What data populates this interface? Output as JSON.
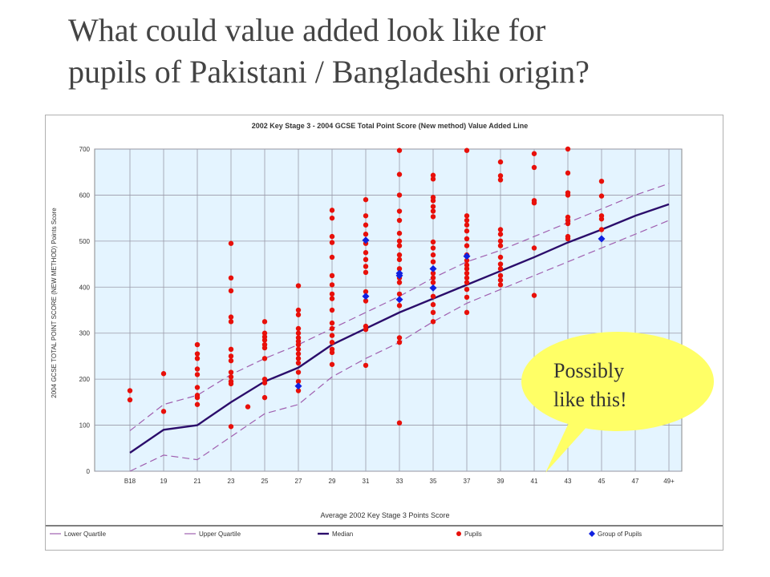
{
  "slide": {
    "title_line1": "What could value added look like for",
    "title_line2": "pupils of Pakistani / Bangladeshi origin?"
  },
  "callout": {
    "line1": "Possibly",
    "line2": "like this!",
    "color": "#ffff66"
  },
  "chart_data": {
    "type": "line",
    "title": "2002 Key Stage 3 - 2004 GCSE Total Point Score (New method) Value Added Line",
    "xlabel": "Average 2002 Key Stage 3 Points Score",
    "ylabel": "2004 GCSE TOTAL POINT SCORE (NEW METHOD) Points Score",
    "categories": [
      "B18",
      "19",
      "21",
      "23",
      "25",
      "27",
      "29",
      "31",
      "33",
      "35",
      "37",
      "39",
      "41",
      "43",
      "45",
      "47",
      "49+"
    ],
    "ylim": [
      0,
      700
    ],
    "yticks": [
      0,
      100,
      200,
      300,
      400,
      500,
      600,
      700
    ],
    "grid": true,
    "legend_position": "bottom",
    "legend": [
      "Lower Quartile",
      "Upper Quartile",
      "Median",
      "Pupils",
      "Group of Pupils"
    ],
    "colors": {
      "median": "#2b0d6b",
      "quartile": "#a060b0",
      "pupils": "#e8100a",
      "group": "#1020e0",
      "plot_bg": "#e4f4ff",
      "grid": "#9a9aa8"
    },
    "series": [
      {
        "name": "Median",
        "style": "solid",
        "values": [
          40,
          90,
          100,
          150,
          195,
          225,
          275,
          310,
          345,
          375,
          405,
          435,
          465,
          497,
          525,
          555,
          580
        ]
      },
      {
        "name": "Upper Quartile",
        "style": "dashed",
        "values": [
          88,
          145,
          165,
          210,
          245,
          275,
          310,
          345,
          380,
          420,
          455,
          480,
          510,
          540,
          570,
          600,
          625
        ]
      },
      {
        "name": "Lower Quartile",
        "style": "dashed",
        "values": [
          0,
          35,
          25,
          75,
          125,
          145,
          205,
          245,
          280,
          325,
          365,
          395,
          425,
          455,
          485,
          515,
          545
        ]
      }
    ],
    "pupils": [
      {
        "x": 0,
        "y": 175
      },
      {
        "x": 0,
        "y": 155
      },
      {
        "x": 1,
        "y": 212
      },
      {
        "x": 1,
        "y": 130
      },
      {
        "x": 2,
        "y": 275
      },
      {
        "x": 2,
        "y": 255
      },
      {
        "x": 2,
        "y": 245
      },
      {
        "x": 2,
        "y": 222
      },
      {
        "x": 2,
        "y": 210
      },
      {
        "x": 2,
        "y": 182
      },
      {
        "x": 2,
        "y": 165
      },
      {
        "x": 2,
        "y": 160
      },
      {
        "x": 2,
        "y": 145
      },
      {
        "x": 3,
        "y": 495
      },
      {
        "x": 3,
        "y": 420
      },
      {
        "x": 3,
        "y": 392
      },
      {
        "x": 3,
        "y": 335
      },
      {
        "x": 3,
        "y": 325
      },
      {
        "x": 3,
        "y": 265
      },
      {
        "x": 3,
        "y": 250
      },
      {
        "x": 3,
        "y": 240
      },
      {
        "x": 3,
        "y": 215
      },
      {
        "x": 3,
        "y": 205
      },
      {
        "x": 3,
        "y": 195
      },
      {
        "x": 3,
        "y": 190
      },
      {
        "x": 3,
        "y": 97
      },
      {
        "x": 3.5,
        "y": 140
      },
      {
        "x": 4,
        "y": 325
      },
      {
        "x": 4,
        "y": 300
      },
      {
        "x": 4,
        "y": 292
      },
      {
        "x": 4,
        "y": 285
      },
      {
        "x": 4,
        "y": 275
      },
      {
        "x": 4,
        "y": 268
      },
      {
        "x": 4,
        "y": 245
      },
      {
        "x": 4,
        "y": 200
      },
      {
        "x": 4,
        "y": 192
      },
      {
        "x": 4,
        "y": 160
      },
      {
        "x": 5,
        "y": 403
      },
      {
        "x": 5,
        "y": 350
      },
      {
        "x": 5,
        "y": 340
      },
      {
        "x": 5,
        "y": 310
      },
      {
        "x": 5,
        "y": 300
      },
      {
        "x": 5,
        "y": 290
      },
      {
        "x": 5,
        "y": 282
      },
      {
        "x": 5,
        "y": 275
      },
      {
        "x": 5,
        "y": 265
      },
      {
        "x": 5,
        "y": 255
      },
      {
        "x": 5,
        "y": 245
      },
      {
        "x": 5,
        "y": 235
      },
      {
        "x": 5,
        "y": 215
      },
      {
        "x": 5,
        "y": 195
      },
      {
        "x": 5,
        "y": 175
      },
      {
        "x": 6,
        "y": 567
      },
      {
        "x": 6,
        "y": 550
      },
      {
        "x": 6,
        "y": 510
      },
      {
        "x": 6,
        "y": 497
      },
      {
        "x": 6,
        "y": 465
      },
      {
        "x": 6,
        "y": 425
      },
      {
        "x": 6,
        "y": 405
      },
      {
        "x": 6,
        "y": 385
      },
      {
        "x": 6,
        "y": 375
      },
      {
        "x": 6,
        "y": 350
      },
      {
        "x": 6,
        "y": 322
      },
      {
        "x": 6,
        "y": 310
      },
      {
        "x": 6,
        "y": 295
      },
      {
        "x": 6,
        "y": 280
      },
      {
        "x": 6,
        "y": 265
      },
      {
        "x": 6,
        "y": 258
      },
      {
        "x": 6,
        "y": 232
      },
      {
        "x": 7,
        "y": 590
      },
      {
        "x": 7,
        "y": 555
      },
      {
        "x": 7,
        "y": 535
      },
      {
        "x": 7,
        "y": 515
      },
      {
        "x": 7,
        "y": 495
      },
      {
        "x": 7,
        "y": 475
      },
      {
        "x": 7,
        "y": 460
      },
      {
        "x": 7,
        "y": 445
      },
      {
        "x": 7,
        "y": 432
      },
      {
        "x": 7,
        "y": 390
      },
      {
        "x": 7,
        "y": 370
      },
      {
        "x": 7,
        "y": 315
      },
      {
        "x": 7,
        "y": 308
      },
      {
        "x": 7,
        "y": 230
      },
      {
        "x": 8,
        "y": 697
      },
      {
        "x": 8,
        "y": 645
      },
      {
        "x": 8,
        "y": 600
      },
      {
        "x": 8,
        "y": 565
      },
      {
        "x": 8,
        "y": 545
      },
      {
        "x": 8,
        "y": 517
      },
      {
        "x": 8,
        "y": 500
      },
      {
        "x": 8,
        "y": 490
      },
      {
        "x": 8,
        "y": 470
      },
      {
        "x": 8,
        "y": 460
      },
      {
        "x": 8,
        "y": 440
      },
      {
        "x": 8,
        "y": 420
      },
      {
        "x": 8,
        "y": 410
      },
      {
        "x": 8,
        "y": 385
      },
      {
        "x": 8,
        "y": 360
      },
      {
        "x": 8,
        "y": 290
      },
      {
        "x": 8,
        "y": 280
      },
      {
        "x": 8,
        "y": 105
      },
      {
        "x": 9,
        "y": 643
      },
      {
        "x": 9,
        "y": 635
      },
      {
        "x": 9,
        "y": 595
      },
      {
        "x": 9,
        "y": 588
      },
      {
        "x": 9,
        "y": 575
      },
      {
        "x": 9,
        "y": 565
      },
      {
        "x": 9,
        "y": 553
      },
      {
        "x": 9,
        "y": 498
      },
      {
        "x": 9,
        "y": 485
      },
      {
        "x": 9,
        "y": 470
      },
      {
        "x": 9,
        "y": 455
      },
      {
        "x": 9,
        "y": 430
      },
      {
        "x": 9,
        "y": 420
      },
      {
        "x": 9,
        "y": 410
      },
      {
        "x": 9,
        "y": 380
      },
      {
        "x": 9,
        "y": 362
      },
      {
        "x": 9,
        "y": 345
      },
      {
        "x": 9,
        "y": 325
      },
      {
        "x": 10,
        "y": 697
      },
      {
        "x": 10,
        "y": 555
      },
      {
        "x": 10,
        "y": 545
      },
      {
        "x": 10,
        "y": 535
      },
      {
        "x": 10,
        "y": 522
      },
      {
        "x": 10,
        "y": 505
      },
      {
        "x": 10,
        "y": 490
      },
      {
        "x": 10,
        "y": 470
      },
      {
        "x": 10,
        "y": 458
      },
      {
        "x": 10,
        "y": 448
      },
      {
        "x": 10,
        "y": 440
      },
      {
        "x": 10,
        "y": 430
      },
      {
        "x": 10,
        "y": 420
      },
      {
        "x": 10,
        "y": 410
      },
      {
        "x": 10,
        "y": 395
      },
      {
        "x": 10,
        "y": 378
      },
      {
        "x": 10,
        "y": 345
      },
      {
        "x": 11,
        "y": 672
      },
      {
        "x": 11,
        "y": 642
      },
      {
        "x": 11,
        "y": 633
      },
      {
        "x": 11,
        "y": 525
      },
      {
        "x": 11,
        "y": 515
      },
      {
        "x": 11,
        "y": 500
      },
      {
        "x": 11,
        "y": 490
      },
      {
        "x": 11,
        "y": 465
      },
      {
        "x": 11,
        "y": 450
      },
      {
        "x": 11,
        "y": 440
      },
      {
        "x": 11,
        "y": 425
      },
      {
        "x": 11,
        "y": 415
      },
      {
        "x": 11,
        "y": 405
      },
      {
        "x": 12,
        "y": 690
      },
      {
        "x": 12,
        "y": 660
      },
      {
        "x": 12,
        "y": 588
      },
      {
        "x": 12,
        "y": 583
      },
      {
        "x": 12,
        "y": 485
      },
      {
        "x": 12,
        "y": 382
      },
      {
        "x": 13,
        "y": 700
      },
      {
        "x": 13,
        "y": 648
      },
      {
        "x": 13,
        "y": 605
      },
      {
        "x": 13,
        "y": 600
      },
      {
        "x": 13,
        "y": 552
      },
      {
        "x": 13,
        "y": 545
      },
      {
        "x": 13,
        "y": 538
      },
      {
        "x": 13,
        "y": 510
      },
      {
        "x": 13,
        "y": 505
      },
      {
        "x": 14,
        "y": 630
      },
      {
        "x": 14,
        "y": 598
      },
      {
        "x": 14,
        "y": 555
      },
      {
        "x": 14,
        "y": 548
      },
      {
        "x": 14,
        "y": 525
      }
    ],
    "group_of_pupils": [
      {
        "x": 5,
        "y": 185
      },
      {
        "x": 7,
        "y": 502
      },
      {
        "x": 7,
        "y": 380
      },
      {
        "x": 8,
        "y": 430
      },
      {
        "x": 8,
        "y": 425
      },
      {
        "x": 8,
        "y": 373
      },
      {
        "x": 9,
        "y": 440
      },
      {
        "x": 9,
        "y": 398
      },
      {
        "x": 10,
        "y": 467
      },
      {
        "x": 14,
        "y": 505
      }
    ]
  }
}
